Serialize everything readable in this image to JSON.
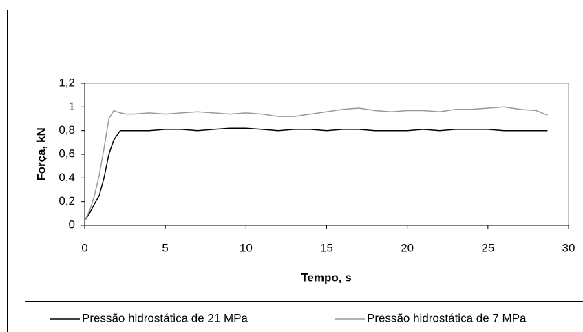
{
  "chart_data": {
    "type": "line",
    "x_label": "Tempo, s",
    "y_label": "Força, kN",
    "x": [
      0,
      0.3,
      0.6,
      0.9,
      1.2,
      1.5,
      1.8,
      2.2,
      2.6,
      3,
      4,
      5,
      6,
      7,
      8,
      9,
      10,
      11,
      12,
      13,
      14,
      15,
      16,
      17,
      18,
      19,
      20,
      21,
      22,
      23,
      24,
      25,
      26,
      27,
      28,
      28.7
    ],
    "series": [
      {
        "name": "Pressão hidrostática de 21 MPa",
        "color": "#000000",
        "values": [
          0.04,
          0.1,
          0.18,
          0.25,
          0.4,
          0.6,
          0.72,
          0.8,
          0.8,
          0.8,
          0.8,
          0.81,
          0.81,
          0.8,
          0.81,
          0.82,
          0.82,
          0.81,
          0.8,
          0.81,
          0.81,
          0.8,
          0.81,
          0.81,
          0.8,
          0.8,
          0.8,
          0.81,
          0.8,
          0.81,
          0.81,
          0.81,
          0.8,
          0.8,
          0.8,
          0.8
        ]
      },
      {
        "name": "Pressão hidrostática de 7 MPa",
        "color": "#999999",
        "values": [
          0.04,
          0.12,
          0.25,
          0.42,
          0.65,
          0.9,
          0.97,
          0.95,
          0.94,
          0.94,
          0.95,
          0.94,
          0.95,
          0.96,
          0.95,
          0.94,
          0.95,
          0.94,
          0.92,
          0.92,
          0.94,
          0.96,
          0.98,
          0.99,
          0.97,
          0.96,
          0.97,
          0.97,
          0.96,
          0.98,
          0.98,
          0.99,
          1.0,
          0.98,
          0.97,
          0.93
        ]
      }
    ],
    "xlim": [
      0,
      30
    ],
    "xticks": [
      0,
      5,
      10,
      15,
      20,
      25,
      30
    ],
    "ylim": [
      0,
      1.2
    ],
    "yticks": [
      0,
      {
        "value": 0.2,
        "label": "0,2"
      },
      {
        "value": 0.4,
        "label": "0,4"
      },
      {
        "value": 0.6,
        "label": "0,6"
      },
      {
        "value": 0.8,
        "label": "0,8"
      },
      1,
      {
        "value": 1.2,
        "label": "1,2"
      }
    ],
    "legend": "bottom"
  }
}
